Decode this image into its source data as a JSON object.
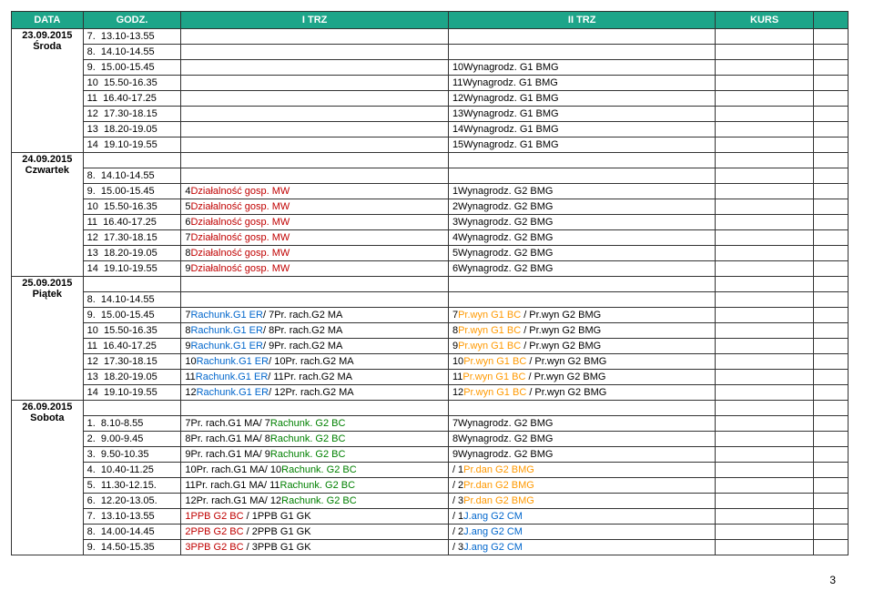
{
  "headers": [
    "DATA",
    "GODZ.",
    "I TRZ",
    "II TRZ",
    "KURS",
    ""
  ],
  "days": [
    {
      "date": "23.09.2015",
      "dayname": "Środa",
      "rows": [
        {
          "n": "7.",
          "g": "13.10-13.55",
          "t1": "",
          "t2": "",
          "k": ""
        },
        {
          "n": "8.",
          "g": "14.10-14.55",
          "t1": "",
          "t2": "",
          "k": ""
        },
        {
          "n": "9.",
          "g": "15.00-15.45",
          "t1": "",
          "t2": "10Wynagrodz. G1 BMG",
          "k": ""
        },
        {
          "n": "10",
          "g": "15.50-16.35",
          "t1": "",
          "t2": "11Wynagrodz. G1 BMG",
          "k": ""
        },
        {
          "n": "11",
          "g": "16.40-17.25",
          "t1": "",
          "t2": "12Wynagrodz. G1 BMG",
          "k": ""
        },
        {
          "n": "12",
          "g": "17.30-18.15",
          "t1": "",
          "t2": "13Wynagrodz. G1 BMG",
          "k": ""
        },
        {
          "n": "13",
          "g": "18.20-19.05",
          "t1": "",
          "t2": "14Wynagrodz. G1 BMG",
          "k": ""
        },
        {
          "n": "14",
          "g": "19.10-19.55",
          "t1": "",
          "t2": "15Wynagrodz. G1 BMG",
          "k": ""
        }
      ]
    },
    {
      "date": "24.09.2015",
      "dayname": "Czwartek",
      "rows": [
        {
          "n": "",
          "g": "",
          "t1": "",
          "t2": "",
          "k": ""
        },
        {
          "n": "8.",
          "g": "14.10-14.55",
          "t1": "",
          "t2": "",
          "k": ""
        },
        {
          "n": "9.",
          "g": "15.00-15.45",
          "t1": {
            "pre": "4",
            "mw": "Działalność gosp. MW"
          },
          "t2": "1Wynagrodz. G2 BMG",
          "k": ""
        },
        {
          "n": "10",
          "g": "15.50-16.35",
          "t1": {
            "pre": "5",
            "mw": "Działalność gosp. MW"
          },
          "t2": "2Wynagrodz. G2 BMG",
          "k": ""
        },
        {
          "n": "11",
          "g": "16.40-17.25",
          "t1": {
            "pre": "6",
            "mw": "Działalność gosp. MW"
          },
          "t2": "3Wynagrodz. G2 BMG",
          "k": ""
        },
        {
          "n": "12",
          "g": "17.30-18.15",
          "t1": {
            "pre": "7",
            "mw": "Działalność gosp. MW"
          },
          "t2": "4Wynagrodz. G2 BMG",
          "k": ""
        },
        {
          "n": "13",
          "g": "18.20-19.05",
          "t1": {
            "pre": "8",
            "mw": "Działalność gosp. MW"
          },
          "t2": "5Wynagrodz. G2 BMG",
          "k": ""
        },
        {
          "n": "14",
          "g": "19.10-19.55",
          "t1": {
            "pre": "9",
            "mw": "Działalność gosp. MW"
          },
          "t2": "6Wynagrodz. G2 BMG",
          "k": ""
        }
      ]
    },
    {
      "date": "25.09.2015",
      "dayname": "Piątek",
      "rows": [
        {
          "n": "",
          "g": "",
          "t1": "",
          "t2": "",
          "k": ""
        },
        {
          "n": "8.",
          "g": "14.10-14.55",
          "t1": "",
          "t2": "",
          "k": ""
        },
        {
          "n": "9.",
          "g": "15.00-15.45",
          "t1": {
            "pre": "7",
            "rach": "Rachunk.G1 ER",
            "post": "/ 7Pr. rach.G2 MA"
          },
          "t2": {
            "pre": "7",
            "pryn": "Pr.wyn G1 BC",
            "post": " / Pr.wyn G2 BMG"
          },
          "k": ""
        },
        {
          "n": "10",
          "g": "15.50-16.35",
          "t1": {
            "pre": "8",
            "rach": "Rachunk.G1 ER",
            "post": "/ 8Pr. rach.G2 MA"
          },
          "t2": {
            "pre": "8",
            "pryn": "Pr.wyn G1 BC",
            "post": " / Pr.wyn G2 BMG"
          },
          "k": ""
        },
        {
          "n": "11",
          "g": "16.40-17.25",
          "t1": {
            "pre": "9",
            "rach": "Rachunk.G1 ER",
            "post": "/ 9Pr. rach.G2 MA"
          },
          "t2": {
            "pre": "9",
            "pryn": "Pr.wyn G1 BC",
            "post": " / Pr.wyn G2 BMG"
          },
          "k": ""
        },
        {
          "n": "12",
          "g": "17.30-18.15",
          "t1": {
            "pre": "10",
            "rach": "Rachunk.G1 ER",
            "post": "/ 10Pr. rach.G2 MA"
          },
          "t2": {
            "pre": "10",
            "pryn": "Pr.wyn G1 BC",
            "post": " / Pr.wyn G2 BMG"
          },
          "k": ""
        },
        {
          "n": "13",
          "g": "18.20-19.05",
          "t1": {
            "pre": "11",
            "rach": "Rachunk.G1 ER",
            "post": "/ 11Pr. rach.G2 MA"
          },
          "t2": {
            "pre": "11",
            "pryn": "Pr.wyn G1 BC",
            "post": " / Pr.wyn G2 BMG"
          },
          "k": ""
        },
        {
          "n": "14",
          "g": "19.10-19.55",
          "t1": {
            "pre": "12",
            "rach": "Rachunk.G1 ER",
            "post": "/ 12Pr. rach.G2 MA"
          },
          "t2": {
            "pre": "12",
            "pryn": "Pr.wyn G1 BC",
            "post": " / Pr.wyn G2 BMG"
          },
          "k": ""
        }
      ]
    },
    {
      "date": "26.09.2015",
      "dayname": "Sobota",
      "rows": [
        {
          "n": "",
          "g": "",
          "t1": "",
          "t2": "",
          "k": ""
        },
        {
          "n": "1.",
          "g": "8.10-8.55",
          "t1": {
            "pre": "7Pr. rach.G1 MA/ 7",
            "g2bc": "Rachunk. G2 BC"
          },
          "t2": "7Wynagrodz. G2 BMG",
          "k": ""
        },
        {
          "n": "2.",
          "g": "9.00-9.45",
          "t1": {
            "pre": "8Pr. rach.G1 MA/ 8",
            "g2bc": "Rachunk. G2 BC"
          },
          "t2": "8Wynagrodz. G2 BMG",
          "k": ""
        },
        {
          "n": "3.",
          "g": "9.50-10.35",
          "t1": {
            "pre": "9Pr. rach.G1 MA/ 9",
            "g2bc": "Rachunk. G2 BC"
          },
          "t2": "9Wynagrodz. G2 BMG",
          "k": ""
        },
        {
          "n": "4.",
          "g": "10.40-11.25",
          "t1": {
            "pre": "10Pr. rach.G1 MA/ 10",
            "g2bc": "Rachunk. G2 BC"
          },
          "t2": {
            "pre": "/ 1",
            "pryn": "Pr.dan G2 BMG"
          },
          "k": ""
        },
        {
          "n": "5.",
          "g": "11.30-12.15.",
          "t1": {
            "pre": "11Pr. rach.G1 MA/ 11",
            "g2bc": "Rachunk. G2 BC"
          },
          "t2": {
            "pre": "/ 2",
            "pryn": "Pr.dan G2 BMG"
          },
          "k": ""
        },
        {
          "n": "6.",
          "g": "12.20-13.05.",
          "t1": {
            "pre": "12Pr. rach.G1 MA/ 12",
            "g2bc": "Rachunk. G2 BC"
          },
          "t2": {
            "pre": "/ 3",
            "pryn": "Pr.dan G2 BMG"
          },
          "k": ""
        },
        {
          "n": "7.",
          "g": "13.10-13.55",
          "t1": {
            "mw": "1PPB G2 BC",
            "post": " / 1PPB G1 GK"
          },
          "t2": {
            "pre": "/ 1",
            "rach": "J.ang G2 CM"
          },
          "k": ""
        },
        {
          "n": "8.",
          "g": "14.00-14.45",
          "t1": {
            "mw": "2PPB G2 BC",
            "post": " / 2PPB G1 GK"
          },
          "t2": {
            "pre": "/ 2",
            "rach": "J.ang G2 CM"
          },
          "k": ""
        },
        {
          "n": "9.",
          "g": "14.50-15.35",
          "t1": {
            "mw": "3PPB G2 BC",
            "post": " / 3PPB G1 GK"
          },
          "t2": {
            "pre": "/ 3",
            "rach": "J.ang G2 CM"
          },
          "k": ""
        }
      ]
    }
  ],
  "pagenum": "3"
}
